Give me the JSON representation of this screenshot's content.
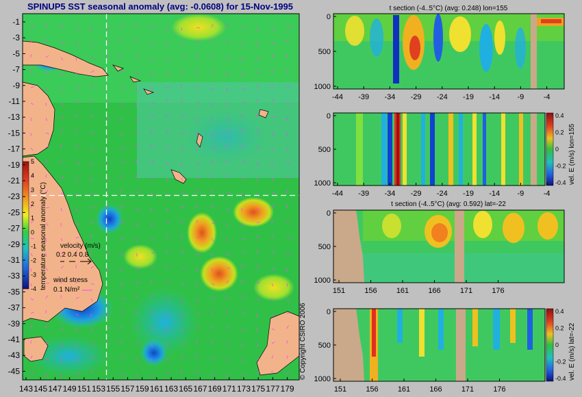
{
  "title": "SPINUP5 SST seasonal anomaly (avg: -0.0608) for 15-Nov-1995",
  "copyright": "© Copyright CSIRO 2006",
  "colors": {
    "land": "#f2b38a",
    "section_land": "#c9a98a",
    "background": "#c0c0c0",
    "crosshair": "#ffffff",
    "vectors": "#ff40ff"
  },
  "map": {
    "lat_ticks": [
      "-1",
      "-3",
      "-5",
      "-7",
      "-9",
      "-11",
      "-13",
      "-15",
      "-17",
      "-19",
      "-21",
      "-23",
      "-25",
      "-27",
      "-29",
      "-31",
      "-33",
      "-35",
      "-37",
      "-39",
      "-41",
      "-43",
      "-45"
    ],
    "lon_ticks": [
      "143",
      "145",
      "147",
      "149",
      "151",
      "153",
      "155",
      "157",
      "159",
      "161",
      "163",
      "165",
      "167",
      "169",
      "171",
      "173",
      "175",
      "177",
      "179"
    ],
    "crosshair": {
      "lon": 155,
      "lat": -22
    },
    "colorbar": {
      "label": "temperature seasonal anomaly (°C)",
      "ticks": [
        "5",
        "4",
        "3",
        "2",
        "1",
        "0",
        "-1",
        "-2",
        "-3",
        "-4"
      ],
      "range": [
        -4,
        5
      ]
    },
    "legend": {
      "velocity_label": "velocity (m/s)",
      "velocity_scale": "0.2 0.4 0.8",
      "stress_label": "wind stress",
      "stress_scale": "0.1 N/m²"
    }
  },
  "sections": [
    {
      "title": "t section (-4..5°C) (avg: 0.248) lon=155",
      "x_ticks": [
        "-44",
        "-39",
        "-34",
        "-29",
        "-24",
        "-19",
        "-14",
        "-9",
        "-4"
      ],
      "y_ticks": [
        "0",
        "500",
        "1000"
      ]
    },
    {
      "title": "",
      "x_ticks": [
        "-44",
        "-39",
        "-34",
        "-29",
        "-24",
        "-19",
        "-14",
        "-9",
        "-4"
      ],
      "y_ticks": [
        "0",
        "500",
        "1000"
      ],
      "colorbar_label": "vel. E (m/s) lon=155",
      "colorbar_ticks": [
        "0.4",
        "0.2",
        "0",
        "-0.2",
        "-0.4"
      ]
    },
    {
      "title": "t section (-4..5°C) (avg: 0.592) lat=-22",
      "x_ticks": [
        "151",
        "156",
        "161",
        "166",
        "171",
        "176"
      ],
      "y_ticks": [
        "0",
        "500",
        "1000"
      ]
    },
    {
      "title": "",
      "x_ticks": [
        "151",
        "156",
        "161",
        "166",
        "171",
        "176"
      ],
      "y_ticks": [
        "0",
        "500",
        "1000"
      ],
      "colorbar_label": "vel. E (m/s) lat=-22",
      "colorbar_ticks": [
        "0.4",
        "0.2",
        "0",
        "-0.2",
        "-0.4"
      ]
    }
  ]
}
